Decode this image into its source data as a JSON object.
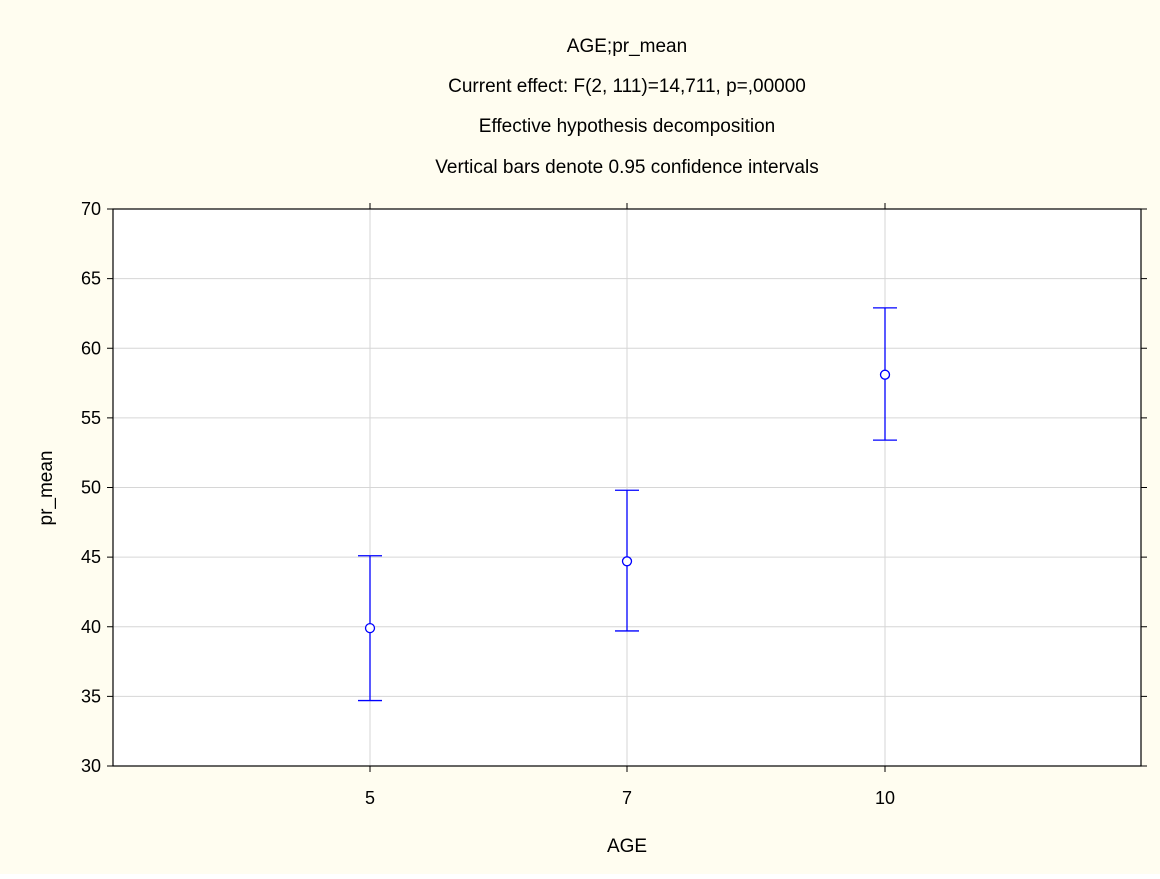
{
  "chart_data": {
    "type": "scatter",
    "title_lines": [
      "AGE;pr_mean",
      "Current effect: F(2, 111)=14,711, p=,00000",
      "Effective hypothesis decomposition",
      "Vertical bars denote 0.95 confidence intervals"
    ],
    "xlabel": "AGE",
    "ylabel": "pr_mean",
    "categories": [
      "5",
      "7",
      "10"
    ],
    "series": [
      {
        "values": [
          39.9,
          44.7,
          58.1
        ],
        "ci_lower": [
          34.7,
          39.7,
          53.4
        ],
        "ci_upper": [
          45.1,
          49.8,
          62.9
        ]
      }
    ],
    "ylim": [
      30,
      70
    ],
    "y_ticks": [
      "30",
      "35",
      "40",
      "45",
      "50",
      "55",
      "60",
      "65",
      "70"
    ],
    "grid": true,
    "colors": {
      "series": "#0000ff",
      "grid": "#d6d6d6",
      "background": "#fffdf0",
      "plot_background": "#ffffff"
    }
  }
}
